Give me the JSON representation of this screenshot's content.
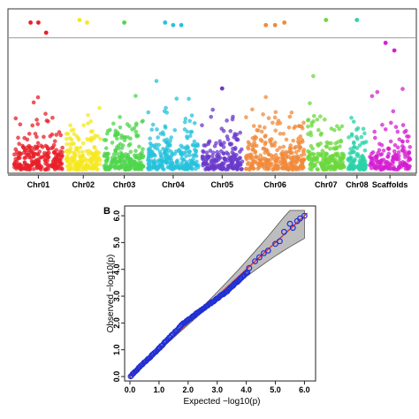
{
  "chart_data": [
    {
      "type": "scatter",
      "panel_label": "",
      "chromosomes": [
        {
          "name": "Chr01",
          "label": "Chr01",
          "color": "#e8202a",
          "share": 0.13,
          "max": 5.8,
          "peaks": [
            5.8,
            5.8,
            5.4
          ]
        },
        {
          "name": "Chr02",
          "label": "Chr02",
          "color": "#f5e81e",
          "share": 0.095,
          "max": 5.9,
          "peaks": [
            5.9,
            5.8
          ]
        },
        {
          "name": "Chr03",
          "label": "Chr03",
          "color": "#4fd64c",
          "share": 0.11,
          "max": 5.8,
          "peaks": [
            5.8
          ]
        },
        {
          "name": "Chr04",
          "label": "Chr04",
          "color": "#27c1dc",
          "share": 0.135,
          "max": 5.8,
          "peaks": [
            5.8,
            5.7,
            5.7
          ]
        },
        {
          "name": "Chr05",
          "label": "Chr05",
          "color": "#6a3acb",
          "share": 0.11,
          "max": 3.2,
          "peaks": [
            3.2
          ]
        },
        {
          "name": "Chr06",
          "label": "Chr06",
          "color": "#f0893a",
          "share": 0.155,
          "max": 5.8,
          "peaks": [
            5.7,
            5.7,
            5.8
          ]
        },
        {
          "name": "Chr07",
          "label": "Chr07",
          "color": "#6bd83e",
          "share": 0.1,
          "max": 5.9,
          "peaks": [
            5.9
          ]
        },
        {
          "name": "Chr08",
          "label": "Chr08",
          "color": "#2ad2a8",
          "share": 0.055,
          "max": 5.9,
          "peaks": [
            5.9
          ]
        },
        {
          "name": "Scaffolds",
          "label": "Scaffolds",
          "color": "#d41fd2",
          "share": 0.11,
          "max": 5.0,
          "peaks": [
            5.0,
            4.7
          ]
        }
      ],
      "threshold": 5.2,
      "ylim": [
        0,
        6.2
      ],
      "grid": false,
      "point_counts": {
        "Chr01": 230,
        "Chr02": 170,
        "Chr03": 200,
        "Chr04": 250,
        "Chr05": 180,
        "Chr06": 280,
        "Chr07": 180,
        "Chr08": 100,
        "Scaffolds": 160
      }
    },
    {
      "type": "scatter",
      "panel_label": "B",
      "title": "",
      "xlabel": "Expected  −log10(p)",
      "ylabel": "Observed  −log10(p)",
      "xlim": [
        0,
        6.2
      ],
      "ylim": [
        0,
        6.2
      ],
      "x_ticks": [
        "0.0",
        "1.0",
        "2.0",
        "3.0",
        "4.0",
        "5.0",
        "6.0"
      ],
      "y_ticks": [
        "0.0",
        "1.0",
        "2.0",
        "3.0",
        "4.0",
        "5.0",
        "6.0"
      ],
      "point_color": "#1f2fd6",
      "reference_line_color": "#e53030",
      "band_color": "#bdbdbd",
      "upper_points": [
        {
          "x": 4.1,
          "y": 4.05
        },
        {
          "x": 4.3,
          "y": 4.3
        },
        {
          "x": 4.45,
          "y": 4.45
        },
        {
          "x": 4.6,
          "y": 4.6
        },
        {
          "x": 4.75,
          "y": 4.7
        },
        {
          "x": 5.0,
          "y": 4.95
        },
        {
          "x": 5.15,
          "y": 5.05
        },
        {
          "x": 5.3,
          "y": 5.4
        },
        {
          "x": 5.5,
          "y": 5.7
        },
        {
          "x": 5.6,
          "y": 5.55
        },
        {
          "x": 5.75,
          "y": 5.8
        },
        {
          "x": 5.85,
          "y": 5.9
        },
        {
          "x": 6.0,
          "y": 6.0
        }
      ],
      "curve_knots": [
        {
          "x": 0.0,
          "y": 0.0
        },
        {
          "x": 1.0,
          "y": 1.05
        },
        {
          "x": 1.8,
          "y": 1.95
        },
        {
          "x": 2.6,
          "y": 2.6
        },
        {
          "x": 3.3,
          "y": 3.15
        },
        {
          "x": 3.9,
          "y": 3.75
        },
        {
          "x": 4.05,
          "y": 3.9
        }
      ]
    }
  ]
}
